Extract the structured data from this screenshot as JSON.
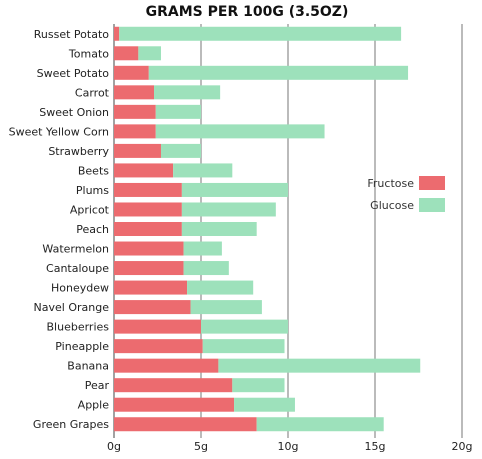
{
  "chart_data": {
    "type": "bar",
    "orientation": "horizontal",
    "stacked": true,
    "title": "GRAMS PER 100G (3.5OZ)",
    "categories": [
      "Russet Potato",
      "Tomato",
      "Sweet Potato",
      "Carrot",
      "Sweet Onion",
      "Sweet Yellow Corn",
      "Strawberry",
      "Beets",
      "Plums",
      "Apricot",
      "Peach",
      "Watermelon",
      "Cantaloupe",
      "Honeydew",
      "Navel Orange",
      "Blueberries",
      "Pineapple",
      "Banana",
      "Pear",
      "Apple",
      "Green Grapes"
    ],
    "series": [
      {
        "name": "Fructose",
        "color": "#ec6b6f",
        "values": [
          0.3,
          1.4,
          2.0,
          2.3,
          2.4,
          2.4,
          2.7,
          3.4,
          3.9,
          3.9,
          3.9,
          4.0,
          4.0,
          4.2,
          4.4,
          5.0,
          5.1,
          6.0,
          6.8,
          6.9,
          8.2
        ]
      },
      {
        "name": "Glucose",
        "color": "#9de1bb",
        "values": [
          16.2,
          1.3,
          14.9,
          3.8,
          2.6,
          9.7,
          2.3,
          3.4,
          6.1,
          5.4,
          4.3,
          2.2,
          2.6,
          3.8,
          4.1,
          5.0,
          4.7,
          11.6,
          3.0,
          3.5,
          7.3
        ]
      }
    ],
    "xlim": [
      0,
      20
    ],
    "x_ticks": [
      "0g",
      "5g",
      "10g",
      "15g",
      "20g"
    ],
    "grid": true,
    "legend_position": "right"
  }
}
